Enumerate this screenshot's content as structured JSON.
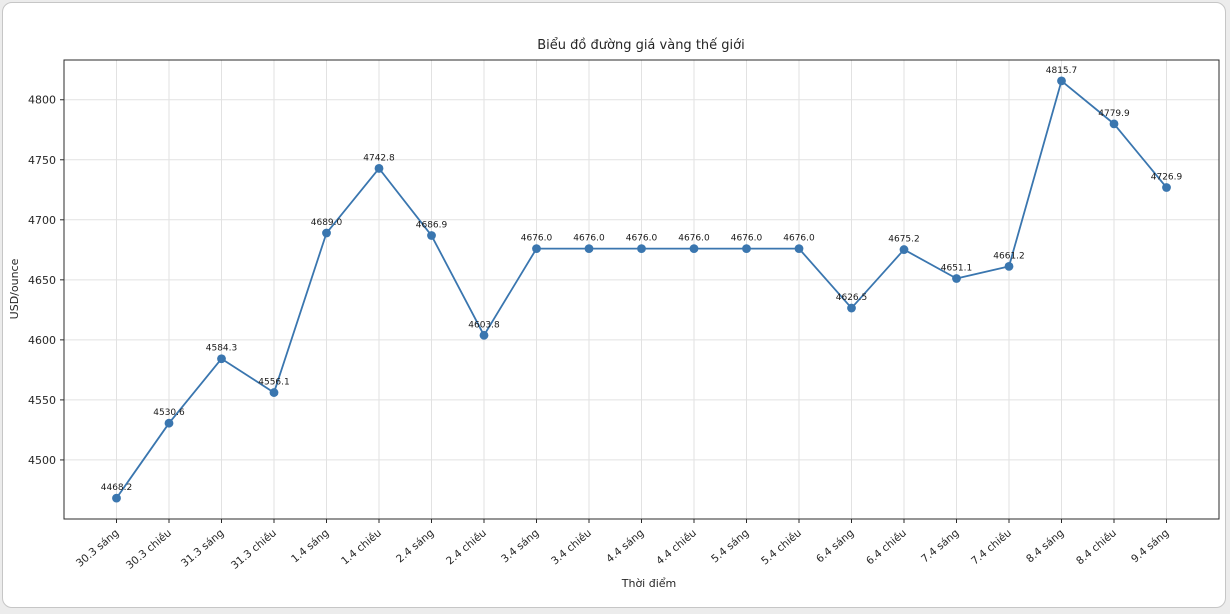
{
  "chart_data": {
    "type": "line",
    "title": "Biểu đồ đường giá vàng thế giới",
    "xlabel": "Thời điểm",
    "ylabel": "USD/ounce",
    "categories": [
      "30.3 sáng",
      "30.3 chiều",
      "31.3 sáng",
      "31.3 chiều",
      "1.4 sáng",
      "1.4 chiều",
      "2.4 sáng",
      "2.4 chiều",
      "3.4 sáng",
      "3.4 chiều",
      "4.4 sáng",
      "4.4 chiều",
      "5.4 sáng",
      "5.4 chiều",
      "6.4 sáng",
      "6.4 chiều",
      "7.4 sáng",
      "7.4 chiều",
      "8.4 sáng",
      "8.4 chiều",
      "9.4 sáng"
    ],
    "values": [
      4468.2,
      4530.6,
      4584.3,
      4556.1,
      4689.0,
      4742.8,
      4686.9,
      4603.8,
      4676.0,
      4676.0,
      4676.0,
      4676.0,
      4676.0,
      4676.0,
      4626.5,
      4675.2,
      4651.1,
      4661.2,
      4815.7,
      4779.9,
      4726.9
    ],
    "y_ticks": [
      4500,
      4550,
      4600,
      4650,
      4700,
      4750,
      4800
    ],
    "ylim": [
      4450.8,
      4833.1
    ],
    "grid": true,
    "legend_position": "none",
    "x_tick_rotation": 40,
    "marker": "circle",
    "data_labels_decimals": 1,
    "line_color": "#3a76af",
    "grid_color": "#e2e2e2",
    "axis_color": "#2b2b2b",
    "text_color": "#262626"
  }
}
